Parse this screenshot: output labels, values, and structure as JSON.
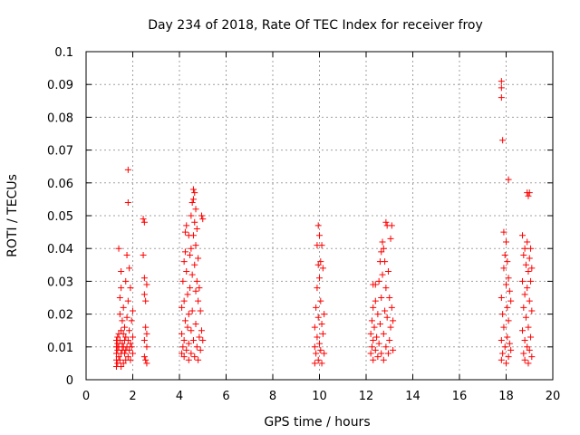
{
  "chart_data": {
    "type": "scatter",
    "title": "Day 234 of 2018, Rate Of TEC Index for receiver froy",
    "xlabel": "GPS time / hours",
    "ylabel": "ROTI / TECUs",
    "xlim": [
      0,
      20
    ],
    "ylim": [
      0,
      0.1
    ],
    "xticks": [
      0,
      2,
      4,
      6,
      8,
      10,
      12,
      14,
      16,
      18,
      20
    ],
    "xtick_labels": [
      "0",
      "2",
      "4",
      "6",
      "8",
      "10",
      "12",
      "14",
      "16",
      "18",
      "20"
    ],
    "yticks": [
      0,
      0.01,
      0.02,
      0.03,
      0.04,
      0.05,
      0.06,
      0.07,
      0.08,
      0.09,
      0.1
    ],
    "ytick_labels": [
      "0",
      "0.01",
      "0.02",
      "0.03",
      "0.04",
      "0.05",
      "0.06",
      "0.07",
      "0.08",
      "0.09",
      "0.1"
    ],
    "grid": true,
    "marker": "plus",
    "marker_color": "#ff0000",
    "series": [
      {
        "name": "ROTI",
        "points": [
          [
            1.3,
            0.004
          ],
          [
            1.3,
            0.006
          ],
          [
            1.3,
            0.008
          ],
          [
            1.3,
            0.01
          ],
          [
            1.3,
            0.012
          ],
          [
            1.35,
            0.005
          ],
          [
            1.35,
            0.009
          ],
          [
            1.35,
            0.011
          ],
          [
            1.35,
            0.013
          ],
          [
            1.4,
            0.04
          ],
          [
            1.4,
            0.007
          ],
          [
            1.4,
            0.01
          ],
          [
            1.4,
            0.014
          ],
          [
            1.45,
            0.006
          ],
          [
            1.45,
            0.012
          ],
          [
            1.45,
            0.02
          ],
          [
            1.45,
            0.025
          ],
          [
            1.5,
            0.004
          ],
          [
            1.5,
            0.008
          ],
          [
            1.5,
            0.015
          ],
          [
            1.5,
            0.028
          ],
          [
            1.5,
            0.033
          ],
          [
            1.55,
            0.009
          ],
          [
            1.55,
            0.011
          ],
          [
            1.55,
            0.018
          ],
          [
            1.6,
            0.005
          ],
          [
            1.6,
            0.01
          ],
          [
            1.6,
            0.014
          ],
          [
            1.6,
            0.022
          ],
          [
            1.65,
            0.008
          ],
          [
            1.65,
            0.012
          ],
          [
            1.65,
            0.016
          ],
          [
            1.7,
            0.006
          ],
          [
            1.7,
            0.009
          ],
          [
            1.7,
            0.013
          ],
          [
            1.7,
            0.03
          ],
          [
            1.75,
            0.038
          ],
          [
            1.75,
            0.01
          ],
          [
            1.75,
            0.019
          ],
          [
            1.8,
            0.064
          ],
          [
            1.8,
            0.054
          ],
          [
            1.8,
            0.024
          ],
          [
            1.8,
            0.012
          ],
          [
            1.8,
            0.007
          ],
          [
            1.85,
            0.034
          ],
          [
            1.85,
            0.015
          ],
          [
            1.85,
            0.009
          ],
          [
            1.9,
            0.028
          ],
          [
            1.9,
            0.011
          ],
          [
            1.9,
            0.006
          ],
          [
            1.95,
            0.018
          ],
          [
            1.95,
            0.01
          ],
          [
            2.0,
            0.013
          ],
          [
            2.0,
            0.008
          ],
          [
            2.0,
            0.021
          ],
          [
            2.45,
            0.049
          ],
          [
            2.45,
            0.038
          ],
          [
            2.5,
            0.048
          ],
          [
            2.5,
            0.031
          ],
          [
            2.5,
            0.026
          ],
          [
            2.5,
            0.012
          ],
          [
            2.5,
            0.007
          ],
          [
            2.55,
            0.024
          ],
          [
            2.55,
            0.016
          ],
          [
            2.55,
            0.006
          ],
          [
            2.6,
            0.029
          ],
          [
            2.6,
            0.014
          ],
          [
            2.6,
            0.01
          ],
          [
            2.6,
            0.005
          ],
          [
            4.1,
            0.008
          ],
          [
            4.1,
            0.014
          ],
          [
            4.1,
            0.022
          ],
          [
            4.15,
            0.03
          ],
          [
            4.15,
            0.01
          ],
          [
            4.2,
            0.036
          ],
          [
            4.2,
            0.024
          ],
          [
            4.2,
            0.012
          ],
          [
            4.2,
            0.007
          ],
          [
            4.25,
            0.045
          ],
          [
            4.25,
            0.039
          ],
          [
            4.25,
            0.018
          ],
          [
            4.3,
            0.047
          ],
          [
            4.3,
            0.033
          ],
          [
            4.3,
            0.009
          ],
          [
            4.35,
            0.026
          ],
          [
            4.35,
            0.016
          ],
          [
            4.4,
            0.044
          ],
          [
            4.4,
            0.02
          ],
          [
            4.4,
            0.011
          ],
          [
            4.4,
            0.006
          ],
          [
            4.45,
            0.038
          ],
          [
            4.45,
            0.028
          ],
          [
            4.5,
            0.05
          ],
          [
            4.5,
            0.04
          ],
          [
            4.5,
            0.015
          ],
          [
            4.5,
            0.008
          ],
          [
            4.55,
            0.054
          ],
          [
            4.55,
            0.032
          ],
          [
            4.55,
            0.021
          ],
          [
            4.6,
            0.058
          ],
          [
            4.6,
            0.055
          ],
          [
            4.6,
            0.044
          ],
          [
            4.6,
            0.012
          ],
          [
            4.65,
            0.057
          ],
          [
            4.65,
            0.048
          ],
          [
            4.65,
            0.035
          ],
          [
            4.65,
            0.007
          ],
          [
            4.7,
            0.052
          ],
          [
            4.7,
            0.041
          ],
          [
            4.7,
            0.027
          ],
          [
            4.7,
            0.017
          ],
          [
            4.75,
            0.046
          ],
          [
            4.75,
            0.03
          ],
          [
            4.75,
            0.01
          ],
          [
            4.8,
            0.037
          ],
          [
            4.8,
            0.024
          ],
          [
            4.8,
            0.006
          ],
          [
            4.85,
            0.028
          ],
          [
            4.85,
            0.013
          ],
          [
            4.9,
            0.021
          ],
          [
            4.9,
            0.009
          ],
          [
            4.95,
            0.05
          ],
          [
            4.95,
            0.015
          ],
          [
            5.0,
            0.049
          ],
          [
            5.0,
            0.012
          ],
          [
            9.8,
            0.005
          ],
          [
            9.8,
            0.01
          ],
          [
            9.8,
            0.016
          ],
          [
            9.85,
            0.008
          ],
          [
            9.85,
            0.022
          ],
          [
            9.9,
            0.041
          ],
          [
            9.9,
            0.028
          ],
          [
            9.9,
            0.013
          ],
          [
            9.95,
            0.047
          ],
          [
            9.95,
            0.035
          ],
          [
            9.95,
            0.019
          ],
          [
            9.95,
            0.006
          ],
          [
            10.0,
            0.044
          ],
          [
            10.0,
            0.031
          ],
          [
            10.0,
            0.011
          ],
          [
            10.05,
            0.036
          ],
          [
            10.05,
            0.024
          ],
          [
            10.05,
            0.009
          ],
          [
            10.1,
            0.041
          ],
          [
            10.1,
            0.017
          ],
          [
            10.1,
            0.005
          ],
          [
            10.15,
            0.034
          ],
          [
            10.15,
            0.014
          ],
          [
            10.2,
            0.02
          ],
          [
            10.2,
            0.008
          ],
          [
            12.2,
            0.008
          ],
          [
            12.2,
            0.014
          ],
          [
            12.25,
            0.01
          ],
          [
            12.25,
            0.018
          ],
          [
            12.3,
            0.029
          ],
          [
            12.3,
            0.022
          ],
          [
            12.3,
            0.012
          ],
          [
            12.3,
            0.006
          ],
          [
            12.35,
            0.016
          ],
          [
            12.4,
            0.029
          ],
          [
            12.4,
            0.024
          ],
          [
            12.4,
            0.009
          ],
          [
            12.45,
            0.013
          ],
          [
            12.5,
            0.02
          ],
          [
            12.5,
            0.007
          ],
          [
            12.55,
            0.03
          ],
          [
            12.55,
            0.011
          ],
          [
            12.6,
            0.036
          ],
          [
            12.6,
            0.017
          ],
          [
            12.65,
            0.039
          ],
          [
            12.65,
            0.025
          ],
          [
            12.65,
            0.008
          ],
          [
            12.7,
            0.042
          ],
          [
            12.7,
            0.032
          ],
          [
            12.75,
            0.04
          ],
          [
            12.75,
            0.014
          ],
          [
            12.75,
            0.006
          ],
          [
            12.8,
            0.036
          ],
          [
            12.8,
            0.021
          ],
          [
            12.85,
            0.048
          ],
          [
            12.85,
            0.028
          ],
          [
            12.85,
            0.01
          ],
          [
            12.9,
            0.047
          ],
          [
            12.9,
            0.019
          ],
          [
            12.95,
            0.033
          ],
          [
            12.95,
            0.008
          ],
          [
            13.0,
            0.025
          ],
          [
            13.0,
            0.012
          ],
          [
            13.05,
            0.043
          ],
          [
            13.05,
            0.016
          ],
          [
            13.1,
            0.047
          ],
          [
            13.1,
            0.022
          ],
          [
            13.15,
            0.018
          ],
          [
            13.15,
            0.009
          ],
          [
            17.8,
            0.091
          ],
          [
            17.8,
            0.089
          ],
          [
            17.8,
            0.086
          ],
          [
            17.8,
            0.025
          ],
          [
            17.8,
            0.012
          ],
          [
            17.8,
            0.006
          ],
          [
            17.85,
            0.073
          ],
          [
            17.85,
            0.02
          ],
          [
            17.85,
            0.008
          ],
          [
            17.9,
            0.045
          ],
          [
            17.9,
            0.034
          ],
          [
            17.9,
            0.016
          ],
          [
            17.95,
            0.038
          ],
          [
            17.95,
            0.01
          ],
          [
            18.0,
            0.042
          ],
          [
            18.0,
            0.029
          ],
          [
            18.0,
            0.005
          ],
          [
            18.05,
            0.036
          ],
          [
            18.05,
            0.022
          ],
          [
            18.05,
            0.013
          ],
          [
            18.1,
            0.061
          ],
          [
            18.1,
            0.031
          ],
          [
            18.1,
            0.018
          ],
          [
            18.1,
            0.007
          ],
          [
            18.15,
            0.027
          ],
          [
            18.15,
            0.011
          ],
          [
            18.2,
            0.024
          ],
          [
            18.2,
            0.009
          ],
          [
            18.7,
            0.044
          ],
          [
            18.7,
            0.03
          ],
          [
            18.7,
            0.015
          ],
          [
            18.75,
            0.038
          ],
          [
            18.75,
            0.022
          ],
          [
            18.75,
            0.008
          ],
          [
            18.8,
            0.04
          ],
          [
            18.8,
            0.026
          ],
          [
            18.8,
            0.012
          ],
          [
            18.8,
            0.006
          ],
          [
            18.85,
            0.035
          ],
          [
            18.85,
            0.019
          ],
          [
            18.9,
            0.057
          ],
          [
            18.9,
            0.042
          ],
          [
            18.9,
            0.028
          ],
          [
            18.9,
            0.01
          ],
          [
            18.95,
            0.056
          ],
          [
            18.95,
            0.033
          ],
          [
            18.95,
            0.016
          ],
          [
            18.95,
            0.005
          ],
          [
            19.0,
            0.057
          ],
          [
            19.0,
            0.037
          ],
          [
            19.0,
            0.024
          ],
          [
            19.0,
            0.009
          ],
          [
            19.05,
            0.04
          ],
          [
            19.05,
            0.03
          ],
          [
            19.05,
            0.013
          ],
          [
            19.1,
            0.034
          ],
          [
            19.1,
            0.021
          ],
          [
            19.1,
            0.007
          ]
        ]
      }
    ]
  }
}
